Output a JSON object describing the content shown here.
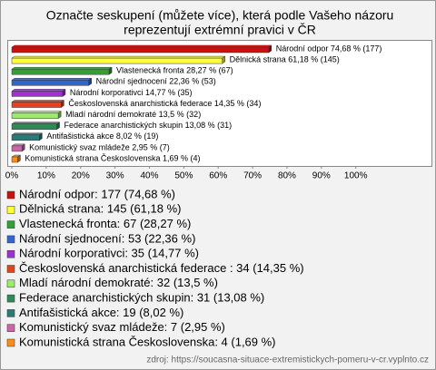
{
  "chart_data": {
    "type": "bar",
    "orientation": "horizontal",
    "title": [
      "Označte seskupení (můžete více), která podle Vašeho názoru",
      "reprezentují extrémní pravici v ČR"
    ],
    "categories": [
      "Národní odpor",
      "Dělnická strana",
      "Vlastenecká fronta",
      "Národní sjednocení",
      "Národní korporativci",
      "Československá anarchistická federace",
      "Mladí národní demokraté",
      "Federace anarchistických skupin",
      "Antifašistická akce",
      "Komunistický svaz mládeže",
      "Komunistická strana Československa"
    ],
    "values": [
      74.68,
      61.18,
      28.27,
      22.36,
      14.77,
      14.35,
      13.5,
      13.08,
      8.02,
      2.95,
      1.69
    ],
    "value_labels": [
      "Národní odpor 74,68 % (177)",
      "Dělnická strana 61,18 % (145)",
      "Vlastenecká fronta 28,27 % (67)",
      "Národní sjednocení 22,36 % (53)",
      "Národní korporativci 14,77 % (35)",
      "Československá anarchistická federace  14,35 % (34)",
      "Mladí národní demokraté 13,5 % (32)",
      "Federace anarchistických skupin 13,08 % (31)",
      "Antifašistická akce 8,02 % (19)",
      "Komunistický svaz mládeže 2,95 % (7)",
      "Komunistická strana Československa 1,69 % (4)"
    ],
    "legend_labels": [
      "Národní odpor: 177 (74,68 %)",
      "Dělnická strana: 145 (61,18 %)",
      "Vlastenecká fronta: 67 (28,27 %)",
      "Národní sjednocení: 53 (22,36 %)",
      "Národní korporativci: 35 (14,77 %)",
      "Československá anarchistická federace : 34 (14,35 %)",
      "Mladí národní demokraté: 32 (13,5 %)",
      "Federace anarchistických skupin: 31 (13,08 %)",
      "Antifašistická akce: 19 (8,02 %)",
      "Komunistický svaz mládeže: 7 (2,95 %)",
      "Komunistická strana Československa: 4 (1,69 %)"
    ],
    "colors": [
      "#cc1010",
      "#ffff33",
      "#33a033",
      "#3366cc",
      "#a030d0",
      "#e84020",
      "#99ee66",
      "#2e8b57",
      "#2a7a7a",
      "#cc66aa",
      "#ff8c1a"
    ],
    "xlim": [
      0,
      122
    ],
    "xticks": [
      {
        "value": 0,
        "label": "0%"
      },
      {
        "value": 10,
        "label": "10%"
      },
      {
        "value": 20,
        "label": "20%"
      },
      {
        "value": 30,
        "label": "30%"
      },
      {
        "value": 40,
        "label": "40%"
      },
      {
        "value": 50,
        "label": "50%"
      },
      {
        "value": 60,
        "label": "60%"
      },
      {
        "value": 70,
        "label": "70%"
      },
      {
        "value": 80,
        "label": "80%"
      },
      {
        "value": 90,
        "label": "90%"
      },
      {
        "value": 100,
        "label": "100%"
      }
    ],
    "source": "zdroj: https://soucasna-situace-extremistickych-pomeru-v-cr.vyplnto.cz"
  }
}
